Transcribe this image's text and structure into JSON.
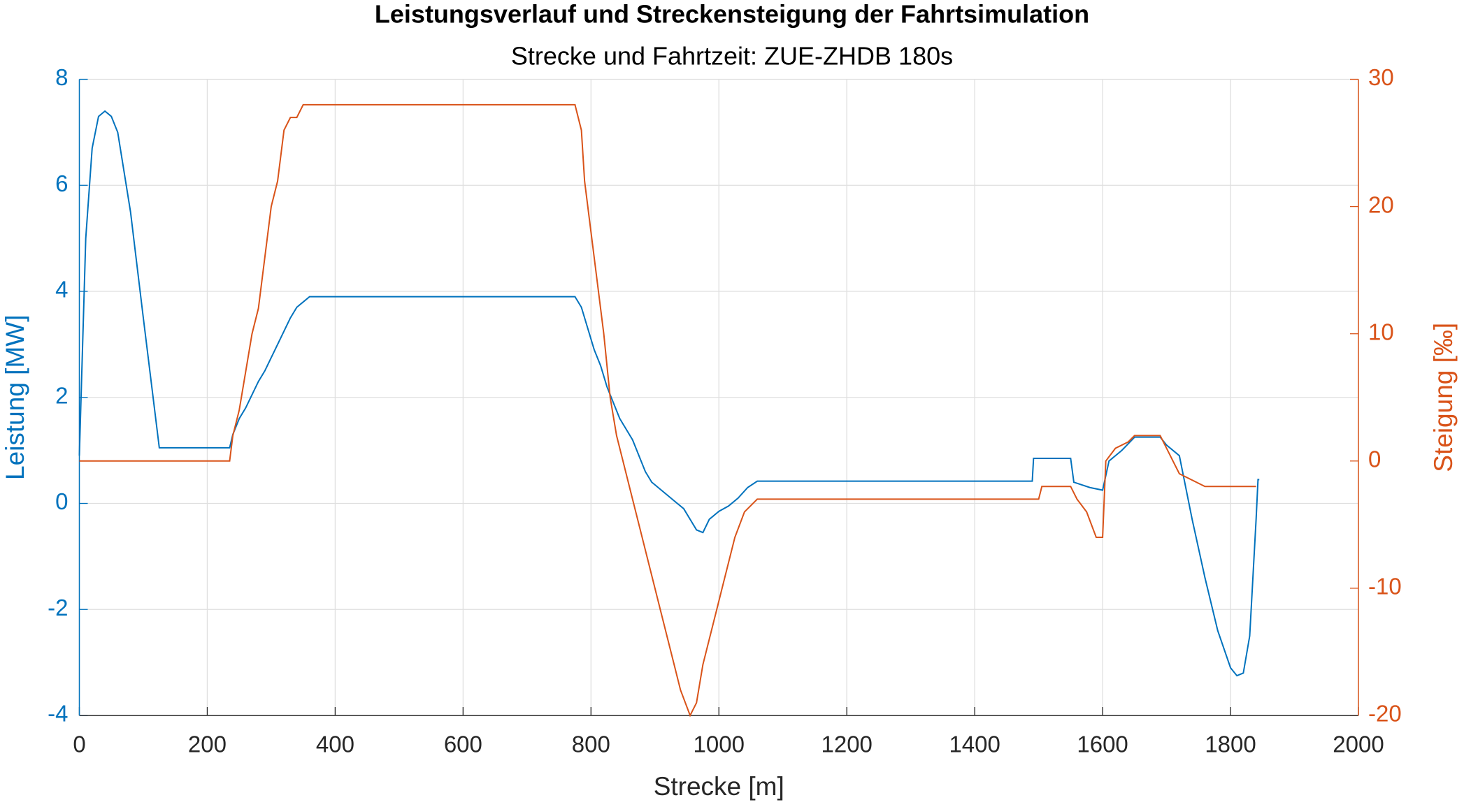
{
  "chart_data": {
    "type": "line",
    "title": "Leistungsverlauf und Streckensteigung der Fahrtsimulation",
    "subtitle": "Strecke und Fahrtzeit: ZUE-ZHDB 180s",
    "xlabel": "Strecke [m]",
    "ylabel": "Leistung [MW]",
    "y2label": "Steigung [‰]",
    "xlim": [
      0,
      2000
    ],
    "xticks": [
      0,
      200,
      400,
      600,
      800,
      1000,
      1200,
      1400,
      1600,
      1800,
      2000
    ],
    "ylim": [
      -4,
      8
    ],
    "yticks": [
      -4,
      -2,
      0,
      2,
      4,
      6,
      8
    ],
    "y2lim": [
      -20,
      30
    ],
    "y2ticks": [
      -20,
      -10,
      0,
      10,
      20,
      30
    ],
    "grid": true,
    "series": [
      {
        "color": "#0072BD",
        "axis": "y",
        "x": [
          0,
          10,
          20,
          30,
          40,
          45,
          50,
          60,
          80,
          100,
          125,
          235,
          240,
          250,
          260,
          270,
          280,
          290,
          300,
          310,
          320,
          330,
          340,
          350,
          360,
          775,
          785,
          795,
          805,
          815,
          825,
          835,
          845,
          855,
          865,
          875,
          885,
          895,
          910,
          920,
          930,
          945,
          955,
          965,
          975,
          985,
          1000,
          1015,
          1030,
          1045,
          1060,
          1490,
          1492,
          1550,
          1555,
          1580,
          1600,
          1610,
          1630,
          1650,
          1690,
          1700,
          1720,
          1740,
          1760,
          1780,
          1800,
          1810,
          1820,
          1830,
          1840,
          1843,
          1845
        ],
        "values": [
          0.9,
          5,
          6.7,
          7.3,
          7.4,
          7.35,
          7.3,
          7.0,
          5.5,
          3.5,
          1.05,
          1.05,
          1.3,
          1.6,
          1.8,
          2.05,
          2.3,
          2.5,
          2.75,
          3.0,
          3.25,
          3.5,
          3.7,
          3.8,
          3.9,
          3.9,
          3.7,
          3.3,
          2.9,
          2.6,
          2.2,
          1.9,
          1.6,
          1.4,
          1.2,
          0.9,
          0.6,
          0.4,
          0.25,
          0.15,
          0.05,
          -0.1,
          -0.3,
          -0.5,
          -0.55,
          -0.3,
          -0.15,
          -0.05,
          0.1,
          0.3,
          0.42,
          0.42,
          0.85,
          0.85,
          0.4,
          0.3,
          0.25,
          0.8,
          1.0,
          1.25,
          1.25,
          1.1,
          0.9,
          -0.3,
          -1.4,
          -2.4,
          -3.1,
          -3.25,
          -3.2,
          -2.5,
          -0.3,
          0.45,
          0.45
        ]
      },
      {
        "color": "#D95319",
        "axis": "y2",
        "x": [
          0,
          235,
          240,
          250,
          260,
          270,
          280,
          290,
          300,
          310,
          320,
          330,
          340,
          350,
          775,
          785,
          790,
          800,
          810,
          820,
          830,
          840,
          850,
          860,
          870,
          880,
          890,
          900,
          910,
          920,
          930,
          940,
          955,
          965,
          975,
          985,
          995,
          1005,
          1015,
          1025,
          1040,
          1060,
          1500,
          1505,
          1550,
          1560,
          1575,
          1590,
          1600,
          1605,
          1620,
          1640,
          1650,
          1690,
          1700,
          1710,
          1720,
          1760,
          1840
        ],
        "values": [
          0,
          0,
          2,
          4,
          7,
          10,
          12,
          16,
          20,
          22,
          26,
          27,
          27,
          28,
          28,
          26,
          22,
          18,
          14,
          10,
          5,
          2,
          0,
          -2,
          -4,
          -6,
          -8,
          -10,
          -12,
          -14,
          -16,
          -18,
          -20,
          -19,
          -16,
          -14,
          -12,
          -10,
          -8,
          -6,
          -4,
          -3,
          -3,
          -2,
          -2,
          -3,
          -4,
          -6,
          -6,
          0,
          1,
          1.5,
          2,
          2,
          1,
          0,
          -1,
          -2,
          -2
        ]
      }
    ]
  }
}
